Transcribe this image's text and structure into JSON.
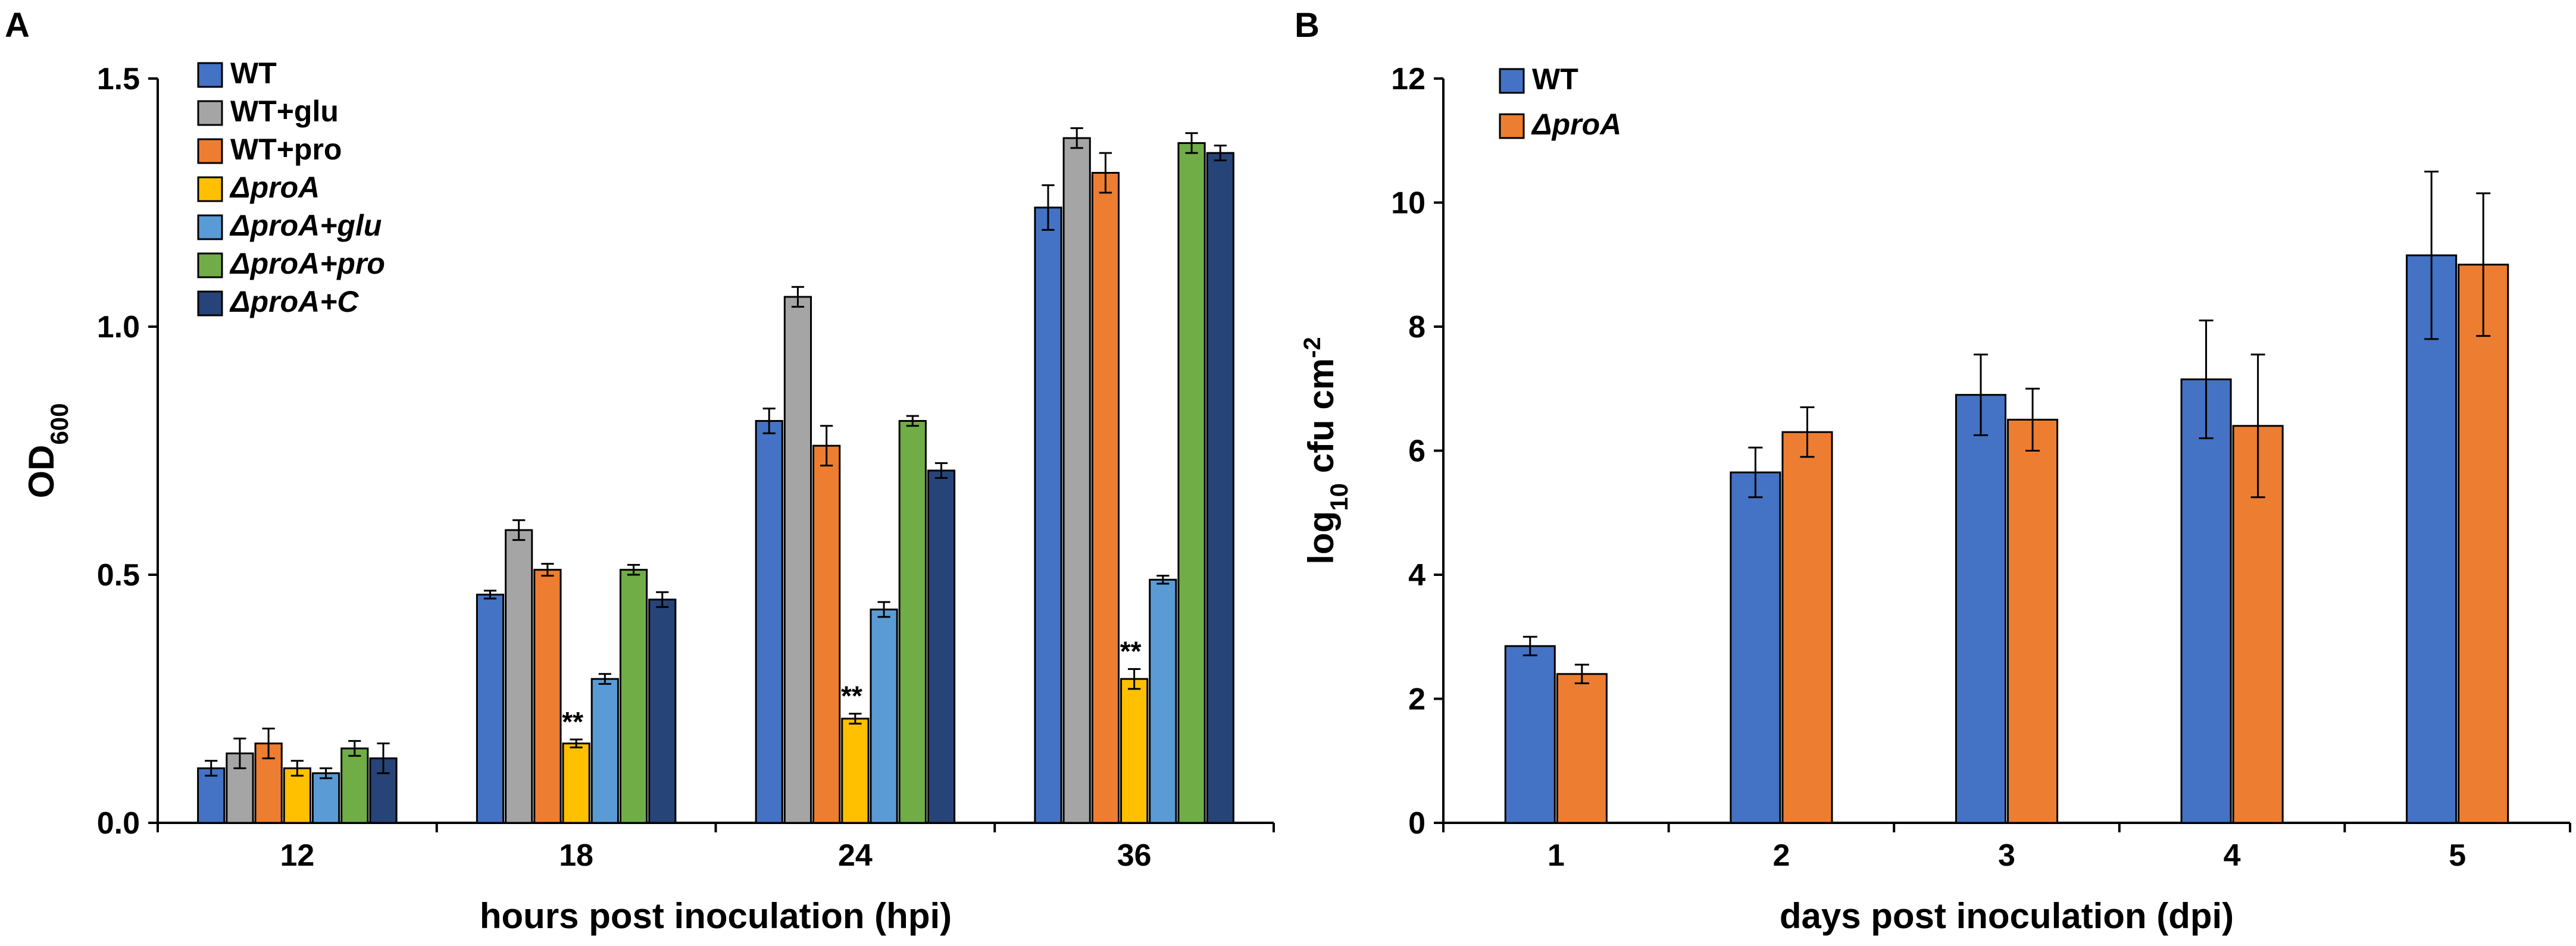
{
  "chart_data": [
    {
      "panel": "A",
      "type": "bar",
      "xlabel": "hours post inoculation (hpi)",
      "ylabel": "OD",
      "ylabel_sub": "600",
      "ylim": [
        0,
        1.5
      ],
      "yticks": [
        "0.0",
        "0.5",
        "1.0",
        "1.5"
      ],
      "grid": false,
      "legend_position": "top-left",
      "categories": [
        "12",
        "18",
        "24",
        "36"
      ],
      "series": [
        {
          "name": "WT",
          "italic": false,
          "color": "#4472C4",
          "values": [
            0.11,
            0.46,
            0.81,
            1.24
          ],
          "errors": [
            0.015,
            0.008,
            0.025,
            0.045
          ]
        },
        {
          "name": "WT+glu",
          "italic": false,
          "color": "#A5A5A5",
          "values": [
            0.14,
            0.59,
            1.06,
            1.38
          ],
          "errors": [
            0.03,
            0.02,
            0.02,
            0.02
          ]
        },
        {
          "name": "WT+pro",
          "italic": false,
          "color": "#ED7D31",
          "values": [
            0.16,
            0.51,
            0.76,
            1.31
          ],
          "errors": [
            0.03,
            0.012,
            0.04,
            0.04
          ]
        },
        {
          "name": "ΔproA",
          "italic": true,
          "color": "#FFC000",
          "values": [
            0.11,
            0.16,
            0.21,
            0.29
          ],
          "errors": [
            0.015,
            0.008,
            0.01,
            0.02
          ]
        },
        {
          "name": "ΔproA+glu",
          "italic": true,
          "color": "#5B9BD5",
          "values": [
            0.1,
            0.29,
            0.43,
            0.49
          ],
          "errors": [
            0.01,
            0.01,
            0.015,
            0.008
          ]
        },
        {
          "name": "ΔproA+pro",
          "italic": true,
          "color": "#70AD47",
          "values": [
            0.15,
            0.51,
            0.81,
            1.37
          ],
          "errors": [
            0.015,
            0.01,
            0.01,
            0.02
          ]
        },
        {
          "name": "ΔproA+C",
          "italic": true,
          "color": "#264478",
          "values": [
            0.13,
            0.45,
            0.71,
            1.35
          ],
          "errors": [
            0.03,
            0.015,
            0.015,
            0.015
          ]
        }
      ],
      "annotations": [
        {
          "text": "**",
          "category": "18",
          "series": "ΔproA"
        },
        {
          "text": "**",
          "category": "24",
          "series": "ΔproA"
        },
        {
          "text": "**",
          "category": "36",
          "series": "ΔproA"
        }
      ]
    },
    {
      "panel": "B",
      "type": "bar",
      "xlabel": "days post inoculation (dpi)",
      "ylabel": "log",
      "ylabel_sub": "10",
      "ylabel_rest": " cfu cm",
      "ylabel_sup": "-2",
      "ylim": [
        0,
        12
      ],
      "yticks": [
        "0",
        "2",
        "4",
        "6",
        "8",
        "10",
        "12"
      ],
      "grid": false,
      "legend_position": "top-left",
      "categories": [
        "1",
        "2",
        "3",
        "4",
        "5"
      ],
      "series": [
        {
          "name": "WT",
          "italic": false,
          "color": "#4472C4",
          "values": [
            2.85,
            5.65,
            6.9,
            7.15,
            9.15
          ],
          "errors": [
            0.15,
            0.4,
            0.65,
            0.95,
            1.35
          ]
        },
        {
          "name": "ΔproA",
          "italic": true,
          "color": "#ED7D31",
          "values": [
            2.4,
            6.3,
            6.5,
            6.4,
            9.0
          ],
          "errors": [
            0.15,
            0.4,
            0.5,
            1.15,
            1.15
          ]
        }
      ]
    }
  ]
}
